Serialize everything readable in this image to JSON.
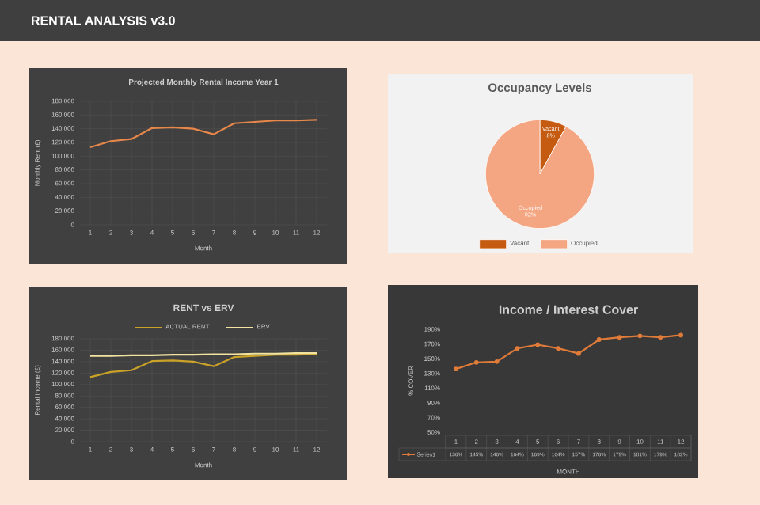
{
  "chart_data": [
    {
      "type": "other",
      "title": "RENTAL ANALYSIS v3.0"
    },
    {
      "type": "line",
      "title": "Projected Monthly Rental Income Year 1",
      "xlabel": "Month",
      "ylabel": "Monthly Rent (£)",
      "categories": [
        "1",
        "2",
        "3",
        "4",
        "5",
        "6",
        "7",
        "8",
        "9",
        "10",
        "11",
        "12"
      ],
      "series": [
        {
          "color": "#e8874a",
          "values": [
            113000,
            122000,
            125000,
            141000,
            142000,
            140000,
            132000,
            148000,
            150000,
            152000,
            152000,
            153000
          ]
        }
      ],
      "ylim": [
        0,
        180000
      ],
      "yticks": [
        0,
        {
          "value": 20000,
          "label": "20,000"
        },
        {
          "value": 40000,
          "label": "40,000"
        },
        {
          "value": 60000,
          "label": "60,000"
        },
        {
          "value": 80000,
          "label": "80,000"
        },
        {
          "value": 100000,
          "label": "100,000"
        },
        {
          "value": 120000,
          "label": "120,000"
        },
        {
          "value": 140000,
          "label": "140,000"
        },
        {
          "value": 160000,
          "label": "160,000"
        },
        {
          "value": 180000,
          "label": "180,000"
        }
      ],
      "grid": true
    },
    {
      "type": "pie",
      "title": "Occupancy Levels",
      "categories": [
        "Vacant",
        "Occupied"
      ],
      "values": [
        8,
        92
      ],
      "colors": [
        "#c55a11",
        "#f4a582"
      ],
      "value_labels": [
        "8%",
        "92%"
      ],
      "legend": "bottom"
    },
    {
      "type": "line",
      "title": "RENT vs ERV",
      "xlabel": "Month",
      "ylabel": "Rental Income (£)",
      "categories": [
        "1",
        "2",
        "3",
        "4",
        "5",
        "6",
        "7",
        "8",
        "9",
        "10",
        "11",
        "12"
      ],
      "series": [
        {
          "name": "ACTUAL RENT",
          "color": "#c9a227",
          "values": [
            113000,
            122000,
            125000,
            141000,
            142000,
            140000,
            132000,
            148000,
            150000,
            152000,
            152000,
            153000
          ]
        },
        {
          "name": "ERV",
          "color": "#f2e3a0",
          "values": [
            150000,
            150000,
            151000,
            151000,
            152000,
            152000,
            153000,
            153000,
            154000,
            154000,
            155000,
            155000
          ]
        }
      ],
      "ylim": [
        0,
        180000
      ],
      "yticks": [
        0,
        {
          "value": 20000,
          "label": "20,000"
        },
        {
          "value": 40000,
          "label": "40,000"
        },
        {
          "value": 60000,
          "label": "60,000"
        },
        {
          "value": 80000,
          "label": "80,000"
        },
        {
          "value": 100000,
          "label": "100,000"
        },
        {
          "value": 120000,
          "label": "120,000"
        },
        {
          "value": 140000,
          "label": "140,000"
        },
        {
          "value": 160000,
          "label": "160,000"
        },
        {
          "value": 180000,
          "label": "180,000"
        }
      ],
      "grid": true,
      "legend": "top"
    },
    {
      "type": "line",
      "title": "Income / Interest Cover",
      "xlabel": "MONTH",
      "ylabel": "% COVER",
      "categories": [
        "1",
        "2",
        "3",
        "4",
        "5",
        "6",
        "7",
        "8",
        "9",
        "10",
        "11",
        "12"
      ],
      "series": [
        {
          "name": "Series1",
          "color": "#e07b39",
          "values": [
            136,
            145,
            146,
            164,
            169,
            164,
            157,
            176,
            179,
            181,
            179,
            182
          ],
          "value_labels": [
            "136%",
            "145%",
            "146%",
            "164%",
            "169%",
            "164%",
            "157%",
            "176%",
            "179%",
            "181%",
            "179%",
            "182%"
          ]
        }
      ],
      "ylim": [
        50,
        190
      ],
      "yticks": [
        {
          "value": 50,
          "label": "50%"
        },
        {
          "value": 70,
          "label": "70%"
        },
        {
          "value": 90,
          "label": "90%"
        },
        {
          "value": 110,
          "label": "110%"
        },
        {
          "value": 130,
          "label": "130%"
        },
        {
          "value": 150,
          "label": "150%"
        },
        {
          "value": 170,
          "label": "170%"
        },
        {
          "value": 190,
          "label": "190%"
        }
      ],
      "marker": "circle",
      "legend": "bottom"
    }
  ]
}
